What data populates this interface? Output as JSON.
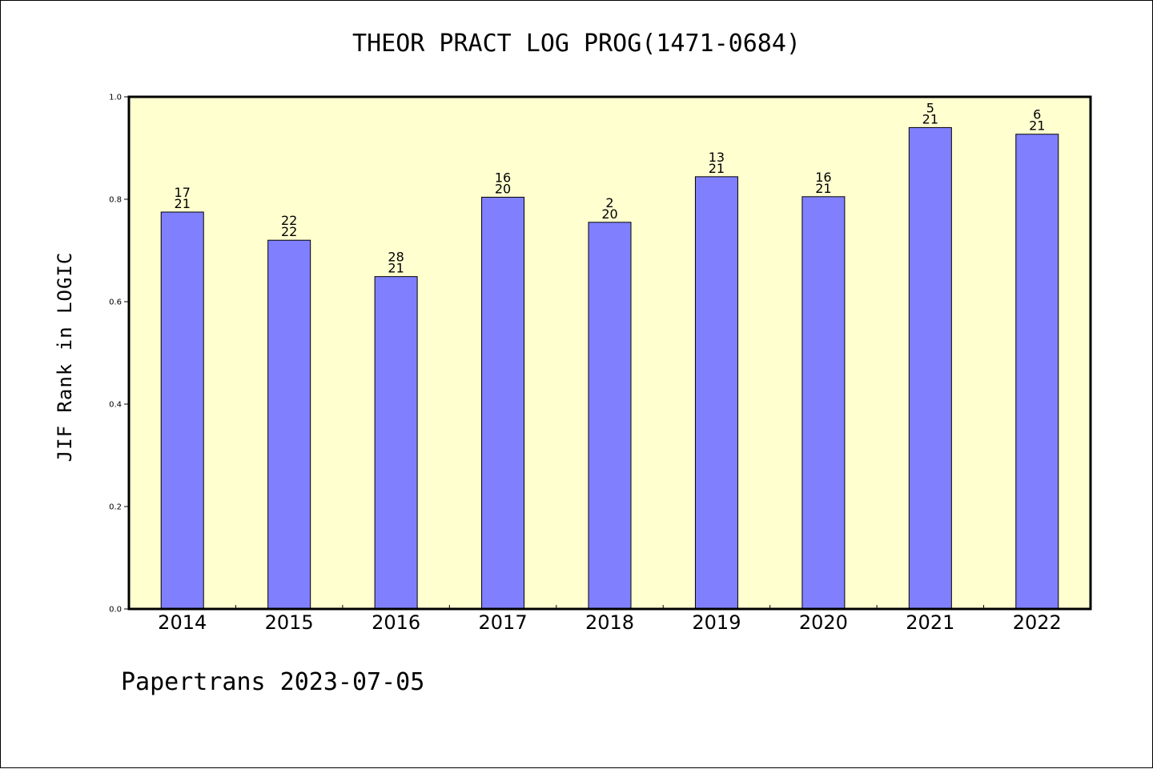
{
  "title": "THEOR PRACT LOG PROG(1471-0684)",
  "footer": "Papertrans 2023-07-05",
  "colors": {
    "plot_background": "#ffffd0",
    "bar_fill": "#8080ff",
    "bar_stroke": "#000000"
  },
  "chart_data": {
    "type": "bar",
    "title": "THEOR PRACT LOG PROG(1471-0684)",
    "xlabel": "",
    "ylabel": "JIF Rank in LOGIC",
    "ylim": [
      0,
      1.0
    ],
    "yticks": [
      "0.0",
      "0.2",
      "0.4",
      "0.6",
      "0.8",
      "1.0"
    ],
    "grid": false,
    "categories": [
      "2014",
      "2015",
      "2016",
      "2017",
      "2018",
      "2019",
      "2020",
      "2021",
      "2022"
    ],
    "values": [
      0.775,
      0.72,
      0.649,
      0.804,
      0.755,
      0.844,
      0.805,
      0.94,
      0.927
    ],
    "labels_top": [
      "17",
      "22",
      "28",
      "16",
      "2",
      "13",
      "16",
      "5",
      "6"
    ],
    "labels_bottom": [
      "21",
      "22",
      "21",
      "20",
      "20",
      "21",
      "21",
      "21",
      "21"
    ]
  }
}
